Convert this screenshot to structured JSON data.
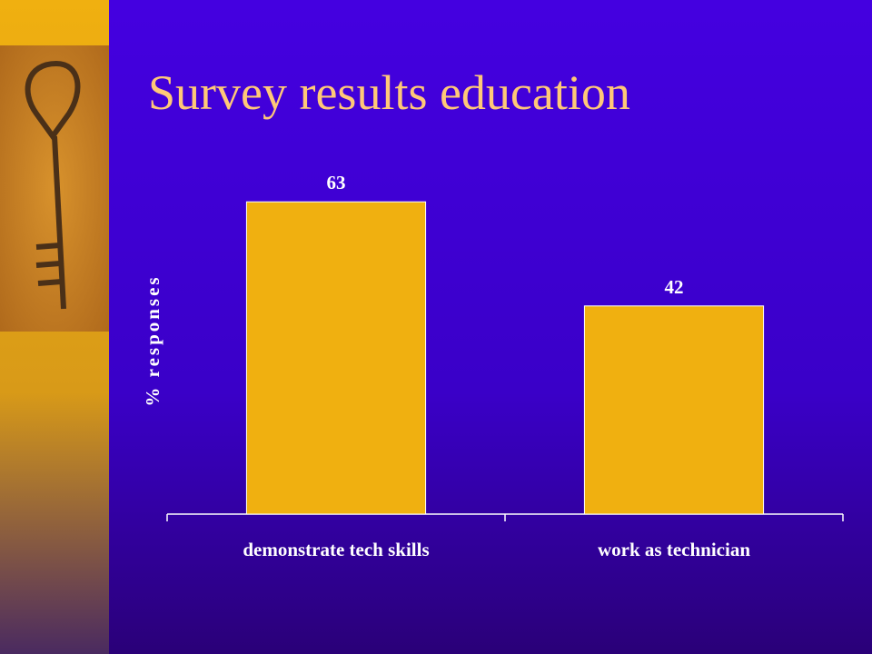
{
  "chart_data": {
    "type": "bar",
    "title": "Survey results education",
    "y_label": "% responses",
    "categories": [
      "demonstrate tech skills",
      "work as technician"
    ],
    "values": [
      63,
      42
    ],
    "color": "#f0b010",
    "ylim": [
      0,
      70
    ]
  }
}
